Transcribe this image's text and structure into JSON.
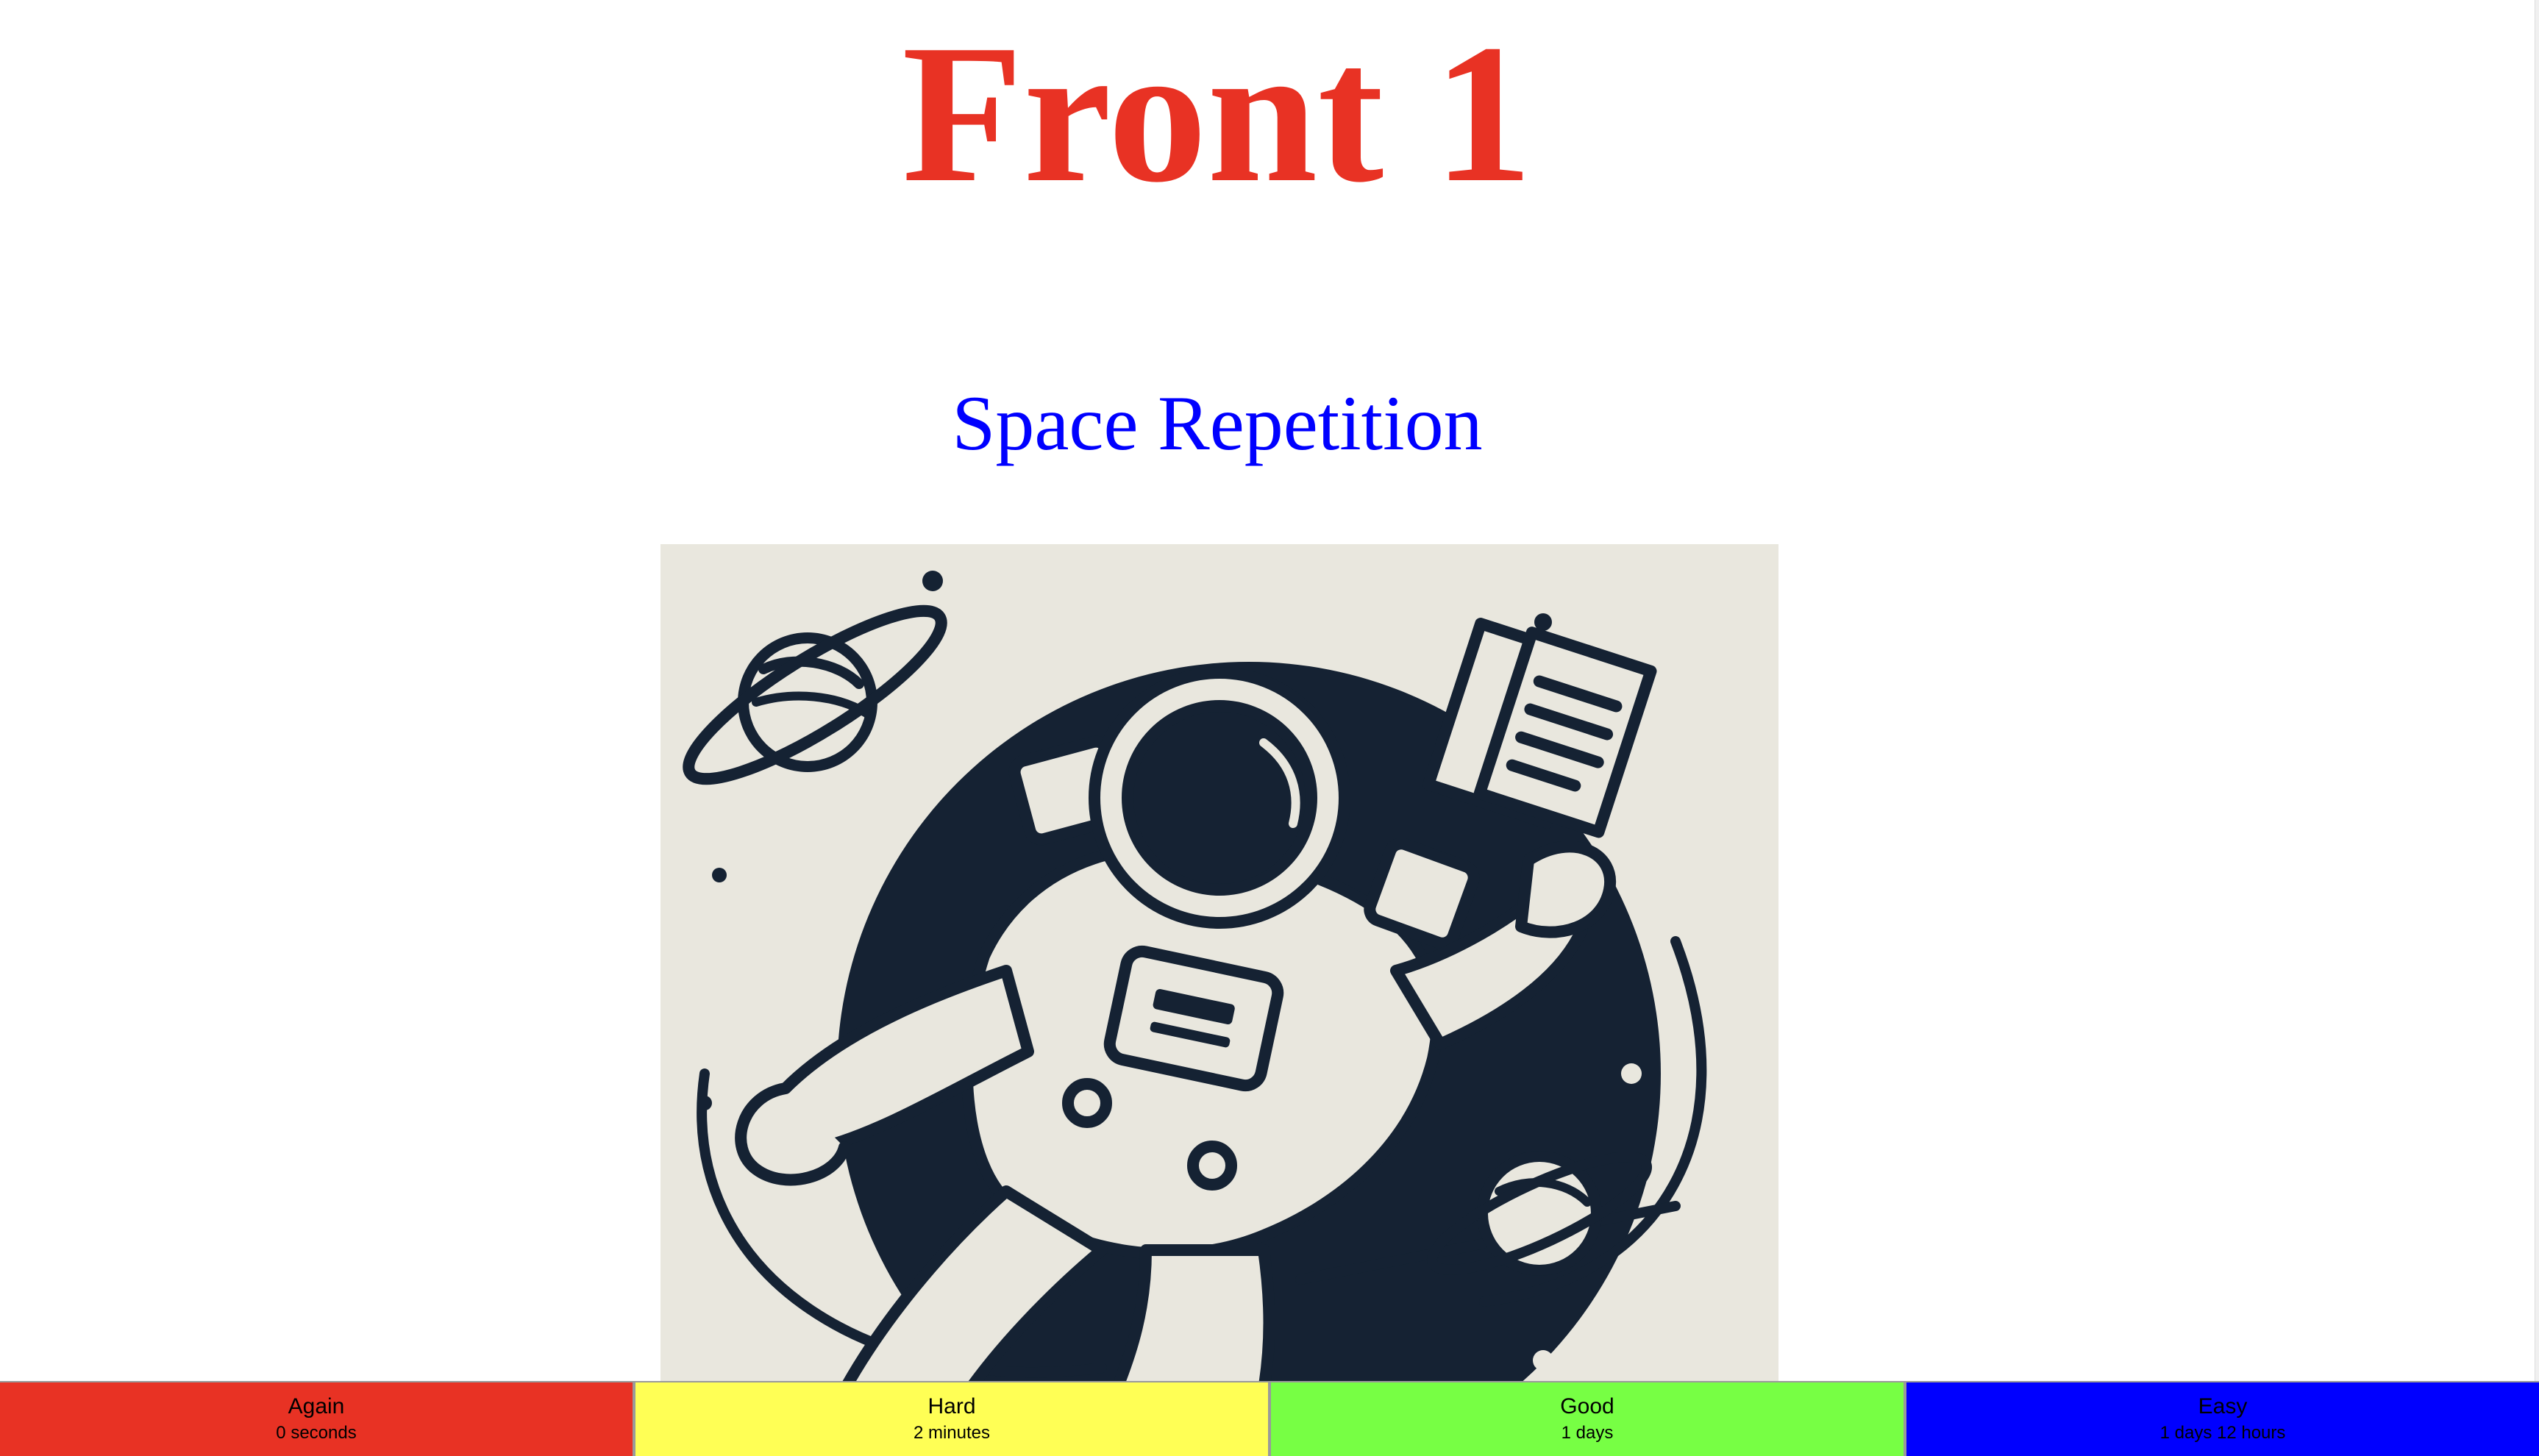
{
  "card": {
    "front_title": "Front 1",
    "subtitle": "Space Repetition",
    "image": {
      "alt": "astronaut-illustration"
    }
  },
  "buttons": [
    {
      "label": "Again",
      "interval": "0 seconds",
      "color": "#e83224"
    },
    {
      "label": "Hard",
      "interval": "2 minutes",
      "color": "#ffff55"
    },
    {
      "label": "Good",
      "interval": "1 days",
      "color": "#77ff44"
    },
    {
      "label": "Easy",
      "interval": "1 days 12 hours",
      "color": "#0000ff"
    }
  ],
  "colors": {
    "title": "#e83224",
    "subtitle_link": "#0000ff",
    "ink": "#152233",
    "paper": "#e9e7de"
  }
}
